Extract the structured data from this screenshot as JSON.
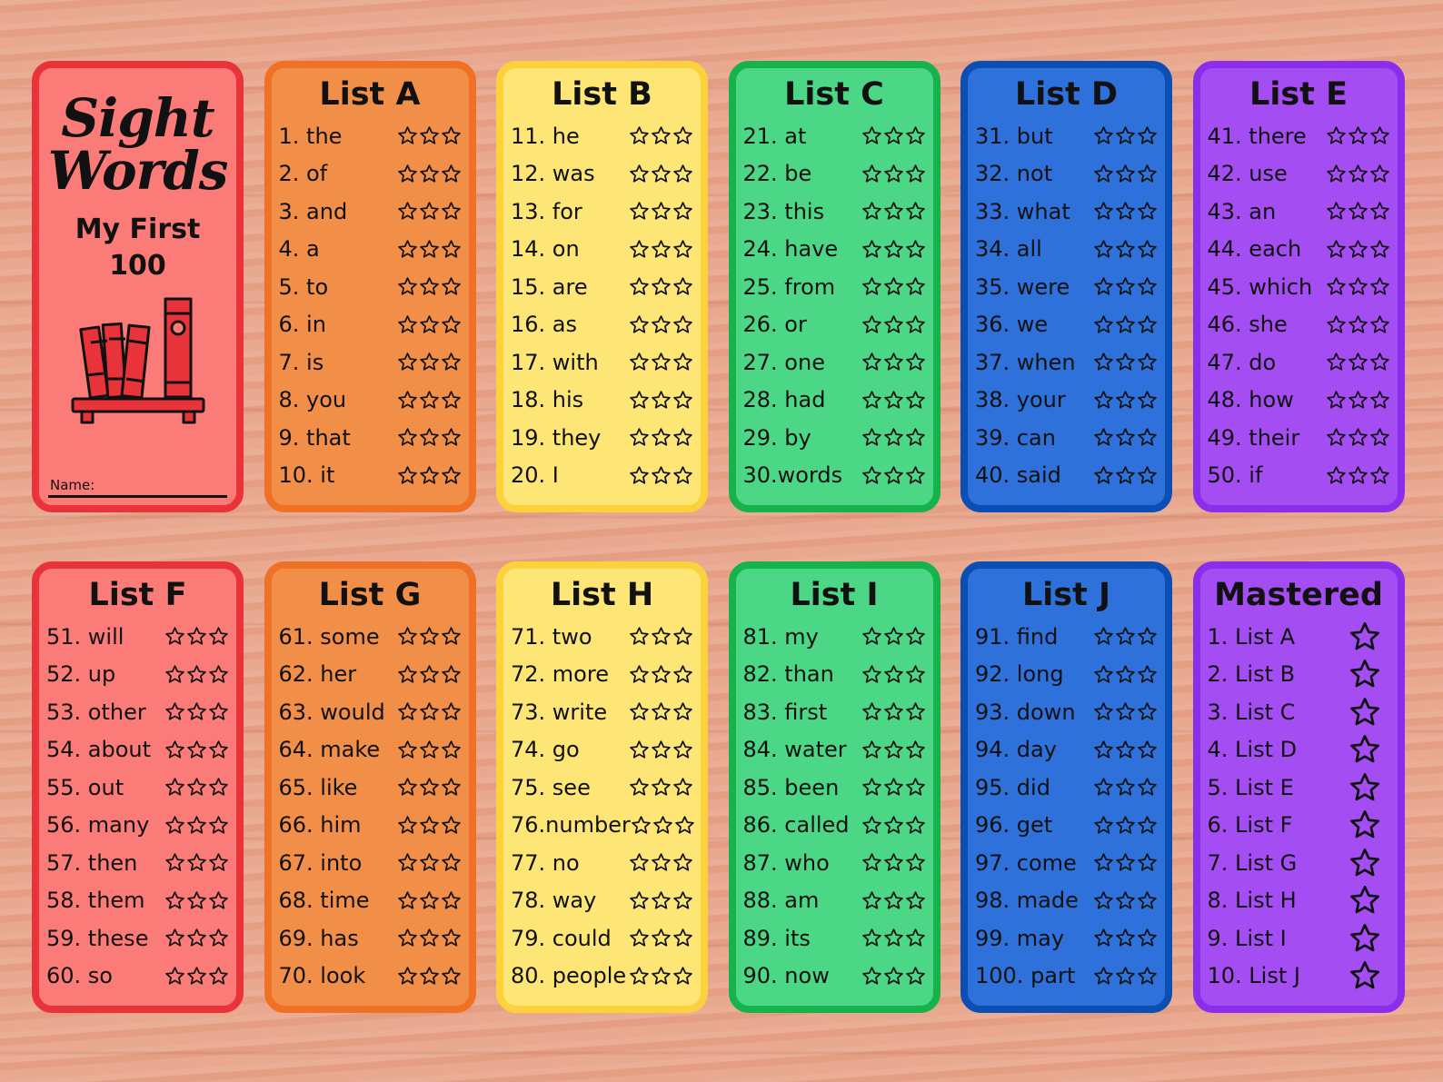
{
  "cover": {
    "title_line1": "Sight",
    "title_line2": "Words",
    "subtitle_line1": "My First",
    "subtitle_line2": "100",
    "name_label": "Name:",
    "color": "#fb7b78",
    "icon": "bookshelf-icon"
  },
  "lists": [
    {
      "title": "List A",
      "color": "#f18f49",
      "words": [
        "1. the",
        "2. of",
        "3. and",
        "4. a",
        "5. to",
        "6. in",
        "7. is",
        "8. you",
        "9. that",
        "10. it"
      ]
    },
    {
      "title": "List B",
      "color": "#fde576",
      "words": [
        "11. he",
        "12. was",
        "13. for",
        "14. on",
        "15. are",
        "16. as",
        "17. with",
        "18. his",
        "19. they",
        "20. I"
      ]
    },
    {
      "title": "List C",
      "color": "#4cd787",
      "words": [
        "21. at",
        "22. be",
        "23. this",
        "24. have",
        "25. from",
        "26. or",
        "27. one",
        "28. had",
        "29. by",
        "30.words"
      ]
    },
    {
      "title": "List D",
      "color": "#2f71da",
      "words": [
        "31. but",
        "32. not",
        "33. what",
        "34. all",
        "35. were",
        "36. we",
        "37. when",
        "38. your",
        "39. can",
        "40. said"
      ]
    },
    {
      "title": "List E",
      "color": "#a44df2",
      "words": [
        "41. there",
        "42. use",
        "43. an",
        "44. each",
        "45. which",
        "46. she",
        "47. do",
        "48. how",
        "49. their",
        "50. if"
      ]
    },
    {
      "title": "List F",
      "color": "#fb7b78",
      "words": [
        "51. will",
        "52. up",
        "53. other",
        "54. about",
        "55. out",
        "56. many",
        "57. then",
        "58. them",
        "59. these",
        "60. so"
      ]
    },
    {
      "title": "List G",
      "color": "#f18f49",
      "words": [
        "61. some",
        "62. her",
        "63. would",
        "64. make",
        "65. like",
        "66. him",
        "67. into",
        "68. time",
        "69. has",
        "70. look"
      ]
    },
    {
      "title": "List H",
      "color": "#fde576",
      "words": [
        "71. two",
        "72. more",
        "73. write",
        "74. go",
        "75. see",
        "76.number",
        "77. no",
        "78. way",
        "79. could",
        "80. people"
      ]
    },
    {
      "title": "List I",
      "color": "#4cd787",
      "words": [
        "81. my",
        "82. than",
        "83. first",
        "84. water",
        "85. been",
        "86. called",
        "87. who",
        "88. am",
        "89. its",
        "90. now"
      ]
    },
    {
      "title": "List J",
      "color": "#2f71da",
      "words": [
        "91. find",
        "92. long",
        "93. down",
        "94. day",
        "95. did",
        "96. get",
        "97. come",
        "98. made",
        "99. may",
        "100. part"
      ]
    }
  ],
  "mastered": {
    "title": "Mastered",
    "color": "#a44df2",
    "items": [
      "1. List A",
      "2. List B",
      "3. List C",
      "4. List D",
      "5. List E",
      "6. List F",
      "7. List G",
      "8. List H",
      "9. List I",
      "10. List J"
    ]
  }
}
